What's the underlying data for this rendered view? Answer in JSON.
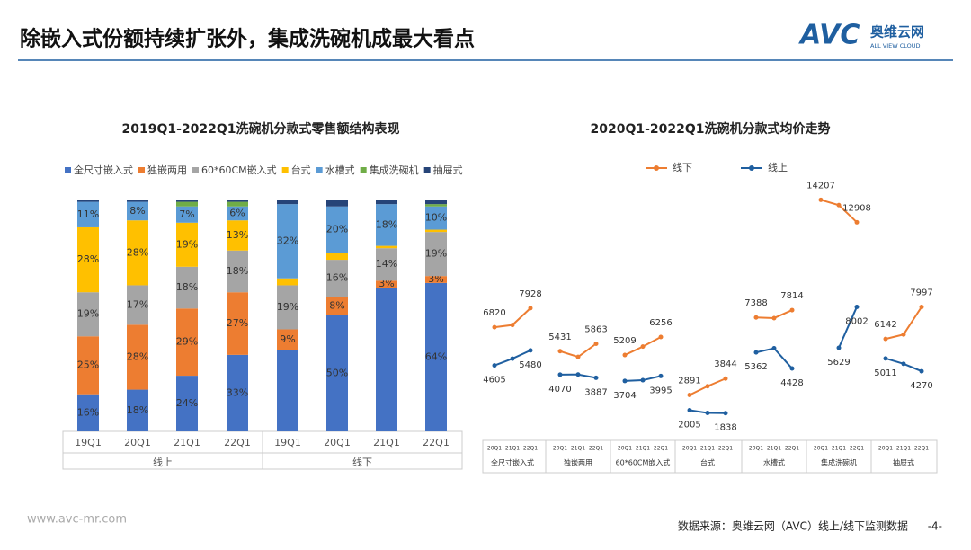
{
  "header": {
    "title": "除嵌入式份额持续扩张外，集成洗碗机成最大看点",
    "logo": "AVC",
    "logo_cn": "奥维云网",
    "logo_en": "ALL VIEW CLOUD"
  },
  "footer": {
    "website": "www.avc-mr.com",
    "source": "数据来源：奥维云网（AVC）线上/线下监测数据",
    "page": "-4-"
  },
  "chart_data": [
    {
      "type": "stacked-bar",
      "title": "2019Q1-2022Q1洗碗机分款式零售额结构表现",
      "categories": [
        "19Q1",
        "20Q1",
        "21Q1",
        "22Q1",
        "19Q1",
        "20Q1",
        "21Q1",
        "22Q1"
      ],
      "groups": [
        "线上",
        "线下"
      ],
      "ylim": [
        0,
        100
      ],
      "legend": "top",
      "series": [
        {
          "name": "全尺寸嵌入式",
          "color": "#4472c4",
          "values": [
            16,
            18,
            24,
            33,
            35,
            50,
            62,
            64
          ],
          "value_labels": [
            "16%",
            "18%",
            "24%",
            "33%",
            null,
            "50%",
            null,
            "64%"
          ]
        },
        {
          "name": "独嵌两用",
          "color": "#ed7d31",
          "values": [
            25,
            28,
            29,
            27,
            9,
            8,
            3,
            3
          ],
          "value_labels": [
            "25%",
            "28%",
            "29%",
            "27%",
            "9%",
            "8%",
            "3%",
            "3%"
          ]
        },
        {
          "name": "60*60CM嵌入式",
          "color": "#a5a5a5",
          "values": [
            19,
            17,
            18,
            18,
            19,
            16,
            14,
            19
          ],
          "value_labels": [
            "19%",
            "17%",
            "18%",
            "18%",
            "19%",
            "16%",
            "14%",
            "19%"
          ]
        },
        {
          "name": "台式",
          "color": "#ffc000",
          "values": [
            28,
            28,
            19,
            13,
            3,
            3,
            1,
            1
          ],
          "value_labels": [
            "28%",
            "28%",
            "19%",
            "13%",
            null,
            null,
            null,
            null
          ]
        },
        {
          "name": "水槽式",
          "color": "#5b9bd5",
          "values": [
            11,
            8,
            7,
            6,
            32,
            20,
            18,
            10
          ],
          "value_labels": [
            "11%",
            "8%",
            "7%",
            "6%",
            "32%",
            "20%",
            "18%",
            "10%"
          ]
        },
        {
          "name": "集成洗碗机",
          "color": "#70ad47",
          "values": [
            0,
            0,
            2,
            2,
            0,
            0,
            0,
            1
          ],
          "value_labels": [
            null,
            null,
            null,
            null,
            null,
            null,
            null,
            null
          ]
        },
        {
          "name": "抽屉式",
          "color": "#264478",
          "values": [
            1,
            1,
            1,
            1,
            2,
            3,
            2,
            2
          ],
          "value_labels": [
            null,
            null,
            null,
            null,
            null,
            null,
            null,
            null
          ]
        }
      ]
    },
    {
      "type": "line",
      "title": "2020Q1-2022Q1洗碗机分款式均价走势",
      "groups": [
        "全尺寸嵌入式",
        "独嵌两用",
        "60*60CM嵌入式",
        "台式",
        "水槽式",
        "集成洗碗机",
        "抽屉式"
      ],
      "categories": [
        "20Q1",
        "21Q1",
        "22Q1",
        "20Q1",
        "21Q1",
        "22Q1",
        "20Q1",
        "21Q1",
        "22Q1",
        "20Q1",
        "21Q1",
        "22Q1",
        "20Q1",
        "21Q1",
        "22Q1",
        "20Q1",
        "21Q1",
        "22Q1",
        "20Q1",
        "21Q1",
        "22Q1"
      ],
      "ylim": [
        0,
        16000
      ],
      "legend": "top",
      "series": [
        {
          "name": "线下",
          "color": "#ed7d31",
          "values": [
            6820,
            6950,
            7928,
            5431,
            5100,
            5863,
            5209,
            5700,
            6256,
            2891,
            3400,
            3844,
            7388,
            7350,
            7814,
            14207,
            13900,
            12908,
            6142,
            6400,
            7997
          ]
        },
        {
          "name": "线上",
          "color": "#1f5fa0",
          "values": [
            4605,
            5000,
            5480,
            4070,
            4080,
            3887,
            3704,
            3750,
            3995,
            2005,
            1850,
            1838,
            5362,
            5600,
            4428,
            null,
            5629,
            8002,
            5011,
            4700,
            4270
          ]
        }
      ]
    }
  ]
}
